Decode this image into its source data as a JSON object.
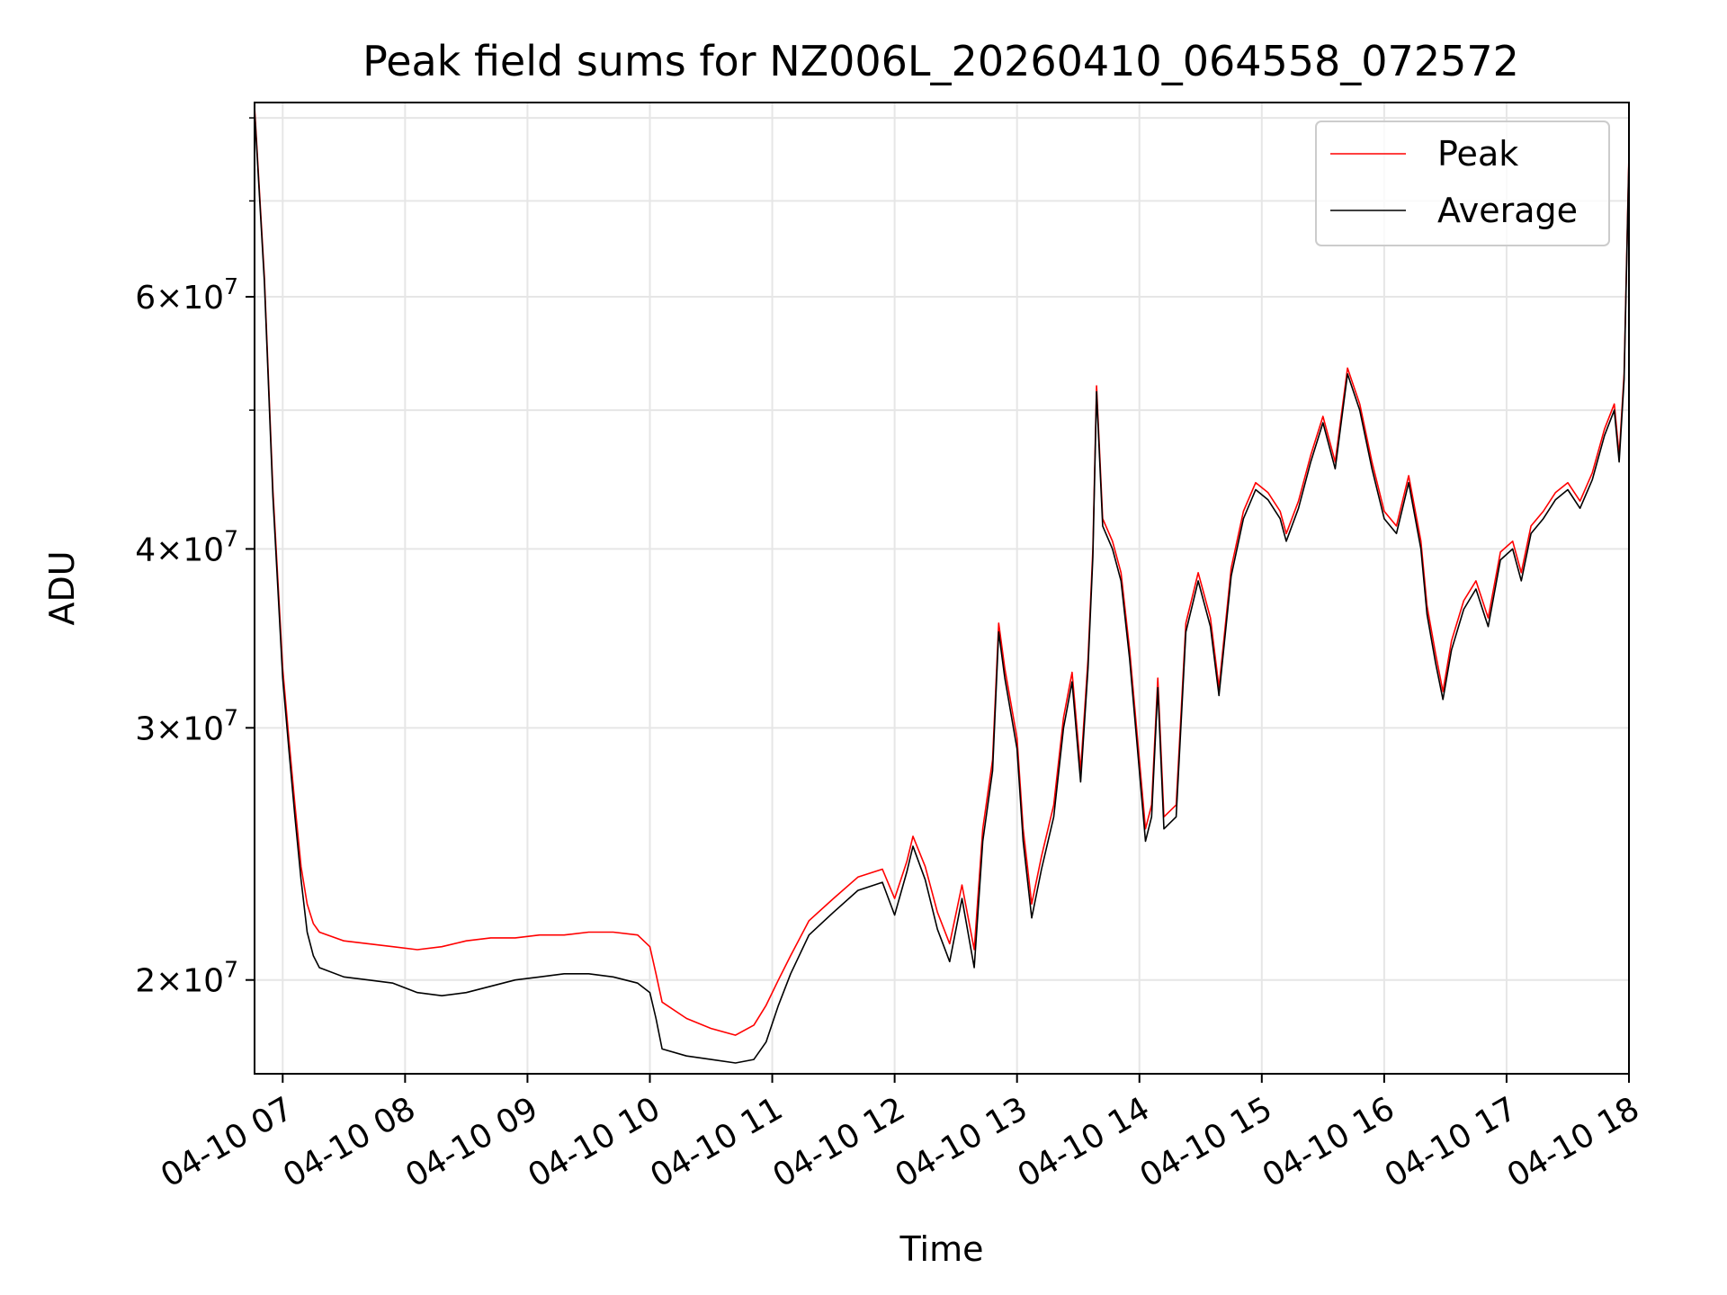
{
  "chart_data": {
    "type": "line",
    "title": "Peak field sums for NZ006L_20260410_064558_072572",
    "xlabel": "Time",
    "ylabel": "ADU",
    "yscale": "log",
    "xlim": [
      6.77,
      18.0
    ],
    "ylim": [
      17200000,
      82000000
    ],
    "grid": true,
    "legend_position": "upper right",
    "x_ticks": [
      {
        "value": 7,
        "label": "04-10 07"
      },
      {
        "value": 8,
        "label": "04-10 08"
      },
      {
        "value": 9,
        "label": "04-10 09"
      },
      {
        "value": 10,
        "label": "04-10 10"
      },
      {
        "value": 11,
        "label": "04-10 11"
      },
      {
        "value": 12,
        "label": "04-10 12"
      },
      {
        "value": 13,
        "label": "04-10 13"
      },
      {
        "value": 14,
        "label": "04-10 14"
      },
      {
        "value": 15,
        "label": "04-10 15"
      },
      {
        "value": 16,
        "label": "04-10 16"
      },
      {
        "value": 17,
        "label": "04-10 17"
      },
      {
        "value": 18,
        "label": "04-10 18"
      }
    ],
    "y_ticks": [
      {
        "value": 20000000,
        "mantissa": "2",
        "exponent": "7"
      },
      {
        "value": 30000000,
        "mantissa": "3",
        "exponent": "7"
      },
      {
        "value": 40000000,
        "mantissa": "4",
        "exponent": "7"
      },
      {
        "value": 60000000,
        "mantissa": "6",
        "exponent": "7"
      }
    ],
    "y_minor_ticks": [
      50000000,
      70000000,
      80000000
    ],
    "tick_times": "×10",
    "series": [
      {
        "name": "Peak",
        "color": "#ff0000",
        "points": [
          [
            6.77,
            81500000
          ],
          [
            6.85,
            62000000
          ],
          [
            6.92,
            44000000
          ],
          [
            7.0,
            33000000
          ],
          [
            7.05,
            29500000
          ],
          [
            7.1,
            26500000
          ],
          [
            7.15,
            24000000
          ],
          [
            7.2,
            22600000
          ],
          [
            7.25,
            21900000
          ],
          [
            7.3,
            21600000
          ],
          [
            7.5,
            21300000
          ],
          [
            7.7,
            21200000
          ],
          [
            7.9,
            21100000
          ],
          [
            8.1,
            21000000
          ],
          [
            8.3,
            21100000
          ],
          [
            8.5,
            21300000
          ],
          [
            8.7,
            21400000
          ],
          [
            8.9,
            21400000
          ],
          [
            9.1,
            21500000
          ],
          [
            9.3,
            21500000
          ],
          [
            9.5,
            21600000
          ],
          [
            9.7,
            21600000
          ],
          [
            9.9,
            21500000
          ],
          [
            10.0,
            21100000
          ],
          [
            10.05,
            20200000
          ],
          [
            10.1,
            19300000
          ],
          [
            10.3,
            18800000
          ],
          [
            10.5,
            18500000
          ],
          [
            10.7,
            18300000
          ],
          [
            10.85,
            18600000
          ],
          [
            10.95,
            19200000
          ],
          [
            11.05,
            20000000
          ],
          [
            11.15,
            20800000
          ],
          [
            11.3,
            22000000
          ],
          [
            11.5,
            22800000
          ],
          [
            11.7,
            23600000
          ],
          [
            11.9,
            23900000
          ],
          [
            12.0,
            22800000
          ],
          [
            12.1,
            24200000
          ],
          [
            12.15,
            25200000
          ],
          [
            12.25,
            24000000
          ],
          [
            12.35,
            22300000
          ],
          [
            12.45,
            21200000
          ],
          [
            12.55,
            23300000
          ],
          [
            12.65,
            21000000
          ],
          [
            12.72,
            25500000
          ],
          [
            12.8,
            28500000
          ],
          [
            12.85,
            35500000
          ],
          [
            12.9,
            33000000
          ],
          [
            13.0,
            29500000
          ],
          [
            13.05,
            25500000
          ],
          [
            13.12,
            22600000
          ],
          [
            13.2,
            24400000
          ],
          [
            13.3,
            26500000
          ],
          [
            13.38,
            30500000
          ],
          [
            13.45,
            32800000
          ],
          [
            13.52,
            28000000
          ],
          [
            13.58,
            33500000
          ],
          [
            13.62,
            40000000
          ],
          [
            13.65,
            52000000
          ],
          [
            13.7,
            42000000
          ],
          [
            13.78,
            40500000
          ],
          [
            13.85,
            38500000
          ],
          [
            13.92,
            34000000
          ],
          [
            14.0,
            28500000
          ],
          [
            14.05,
            25500000
          ],
          [
            14.1,
            26500000
          ],
          [
            14.15,
            32500000
          ],
          [
            14.2,
            26000000
          ],
          [
            14.3,
            26500000
          ],
          [
            14.38,
            35500000
          ],
          [
            14.48,
            38500000
          ],
          [
            14.58,
            35800000
          ],
          [
            14.65,
            32000000
          ],
          [
            14.75,
            38800000
          ],
          [
            14.85,
            42500000
          ],
          [
            14.95,
            44500000
          ],
          [
            15.05,
            43800000
          ],
          [
            15.15,
            42500000
          ],
          [
            15.2,
            41000000
          ],
          [
            15.3,
            43200000
          ],
          [
            15.4,
            46500000
          ],
          [
            15.5,
            49500000
          ],
          [
            15.6,
            46000000
          ],
          [
            15.7,
            53500000
          ],
          [
            15.8,
            50500000
          ],
          [
            15.9,
            46000000
          ],
          [
            16.0,
            42500000
          ],
          [
            16.1,
            41500000
          ],
          [
            16.2,
            45000000
          ],
          [
            16.3,
            40500000
          ],
          [
            16.35,
            36500000
          ],
          [
            16.42,
            33800000
          ],
          [
            16.48,
            31800000
          ],
          [
            16.55,
            34500000
          ],
          [
            16.65,
            36800000
          ],
          [
            16.75,
            38000000
          ],
          [
            16.85,
            35800000
          ],
          [
            16.95,
            39800000
          ],
          [
            17.05,
            40500000
          ],
          [
            17.12,
            38500000
          ],
          [
            17.2,
            41500000
          ],
          [
            17.3,
            42500000
          ],
          [
            17.4,
            43800000
          ],
          [
            17.5,
            44500000
          ],
          [
            17.6,
            43200000
          ],
          [
            17.7,
            45200000
          ],
          [
            17.8,
            48500000
          ],
          [
            17.88,
            50500000
          ],
          [
            17.92,
            46500000
          ],
          [
            17.96,
            53000000
          ],
          [
            18.0,
            75500000
          ]
        ]
      },
      {
        "name": "Average",
        "color": "#000000",
        "points": [
          [
            6.77,
            81000000
          ],
          [
            6.85,
            61500000
          ],
          [
            6.92,
            43500000
          ],
          [
            7.0,
            32500000
          ],
          [
            7.05,
            29000000
          ],
          [
            7.1,
            26000000
          ],
          [
            7.15,
            23500000
          ],
          [
            7.2,
            21600000
          ],
          [
            7.25,
            20800000
          ],
          [
            7.3,
            20400000
          ],
          [
            7.5,
            20100000
          ],
          [
            7.7,
            20000000
          ],
          [
            7.9,
            19900000
          ],
          [
            8.1,
            19600000
          ],
          [
            8.3,
            19500000
          ],
          [
            8.5,
            19600000
          ],
          [
            8.7,
            19800000
          ],
          [
            8.9,
            20000000
          ],
          [
            9.1,
            20100000
          ],
          [
            9.3,
            20200000
          ],
          [
            9.5,
            20200000
          ],
          [
            9.7,
            20100000
          ],
          [
            9.9,
            19900000
          ],
          [
            10.0,
            19600000
          ],
          [
            10.05,
            18800000
          ],
          [
            10.1,
            17900000
          ],
          [
            10.3,
            17700000
          ],
          [
            10.5,
            17600000
          ],
          [
            10.7,
            17500000
          ],
          [
            10.85,
            17600000
          ],
          [
            10.95,
            18100000
          ],
          [
            11.05,
            19200000
          ],
          [
            11.15,
            20200000
          ],
          [
            11.3,
            21500000
          ],
          [
            11.5,
            22300000
          ],
          [
            11.7,
            23100000
          ],
          [
            11.9,
            23400000
          ],
          [
            12.0,
            22200000
          ],
          [
            12.1,
            23800000
          ],
          [
            12.15,
            24800000
          ],
          [
            12.25,
            23500000
          ],
          [
            12.35,
            21700000
          ],
          [
            12.45,
            20600000
          ],
          [
            12.55,
            22800000
          ],
          [
            12.65,
            20400000
          ],
          [
            12.72,
            25000000
          ],
          [
            12.8,
            28000000
          ],
          [
            12.85,
            35000000
          ],
          [
            12.9,
            32500000
          ],
          [
            13.0,
            29000000
          ],
          [
            13.05,
            25000000
          ],
          [
            13.12,
            22100000
          ],
          [
            13.2,
            23900000
          ],
          [
            13.3,
            26000000
          ],
          [
            13.38,
            30000000
          ],
          [
            13.45,
            32300000
          ],
          [
            13.52,
            27500000
          ],
          [
            13.58,
            33000000
          ],
          [
            13.62,
            39500000
          ],
          [
            13.65,
            51500000
          ],
          [
            13.7,
            41500000
          ],
          [
            13.78,
            40000000
          ],
          [
            13.85,
            38000000
          ],
          [
            13.92,
            33500000
          ],
          [
            14.0,
            28000000
          ],
          [
            14.05,
            25000000
          ],
          [
            14.1,
            26000000
          ],
          [
            14.15,
            32000000
          ],
          [
            14.2,
            25500000
          ],
          [
            14.3,
            26000000
          ],
          [
            14.38,
            35000000
          ],
          [
            14.48,
            38000000
          ],
          [
            14.58,
            35300000
          ],
          [
            14.65,
            31600000
          ],
          [
            14.75,
            38300000
          ],
          [
            14.85,
            42000000
          ],
          [
            14.95,
            44000000
          ],
          [
            15.05,
            43300000
          ],
          [
            15.15,
            42000000
          ],
          [
            15.2,
            40500000
          ],
          [
            15.3,
            42700000
          ],
          [
            15.4,
            46000000
          ],
          [
            15.5,
            49000000
          ],
          [
            15.6,
            45500000
          ],
          [
            15.7,
            53000000
          ],
          [
            15.8,
            50000000
          ],
          [
            15.9,
            45500000
          ],
          [
            16.0,
            42000000
          ],
          [
            16.1,
            41000000
          ],
          [
            16.2,
            44500000
          ],
          [
            16.3,
            40000000
          ],
          [
            16.35,
            36000000
          ],
          [
            16.42,
            33300000
          ],
          [
            16.48,
            31400000
          ],
          [
            16.55,
            34000000
          ],
          [
            16.65,
            36300000
          ],
          [
            16.75,
            37500000
          ],
          [
            16.85,
            35300000
          ],
          [
            16.95,
            39300000
          ],
          [
            17.05,
            40000000
          ],
          [
            17.12,
            38000000
          ],
          [
            17.2,
            41000000
          ],
          [
            17.3,
            42000000
          ],
          [
            17.4,
            43300000
          ],
          [
            17.5,
            44000000
          ],
          [
            17.6,
            42700000
          ],
          [
            17.7,
            44700000
          ],
          [
            17.8,
            48000000
          ],
          [
            17.88,
            50000000
          ],
          [
            17.92,
            46000000
          ],
          [
            17.96,
            52500000
          ],
          [
            18.0,
            75000000
          ]
        ]
      }
    ]
  }
}
